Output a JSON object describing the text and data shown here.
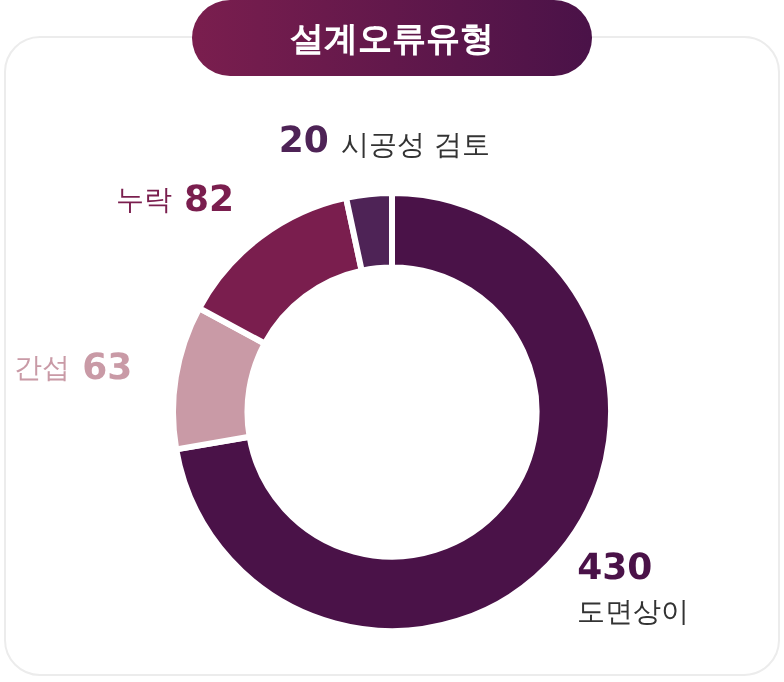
{
  "chart_data": {
    "type": "donut",
    "title": "설계오류유형",
    "categories": [
      "도면상이",
      "간섭",
      "누락",
      "시공성 검토"
    ],
    "values": [
      430,
      63,
      82,
      20
    ],
    "colors": [
      "#4a1248",
      "#c99aa6",
      "#7a1e4e",
      "#4e2356"
    ],
    "data_labels": true,
    "legend": false
  }
}
